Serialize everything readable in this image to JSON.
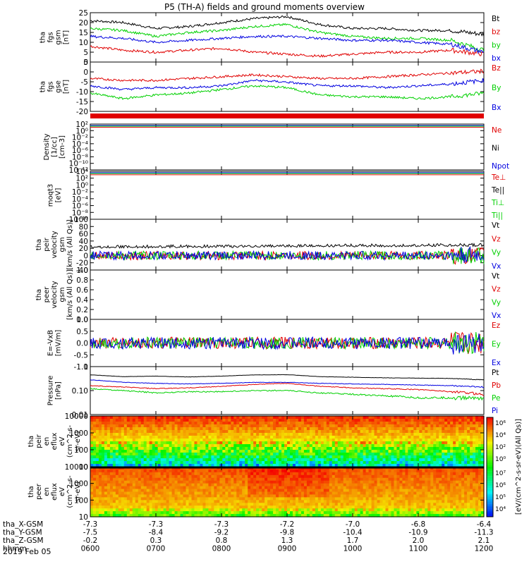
{
  "title": "P5 (TH-A) fields and ground moments overview",
  "date_label": "2019 Feb 05",
  "colors": {
    "black": "#000000",
    "red": "#e00000",
    "green": "#00d000",
    "blue": "#0000e0"
  },
  "chart_data": [
    {
      "type": "line",
      "panel": "fgs_gsm",
      "ylabel": [
        "tha",
        "fgs",
        "gsm",
        "[nT]"
      ],
      "ylim": [
        0,
        25
      ],
      "yticks": [
        "25",
        "20",
        "15",
        "10",
        "5",
        "0"
      ],
      "legend": [
        {
          "name": "Bt",
          "color": "black"
        },
        {
          "name": "bz",
          "color": "red"
        },
        {
          "name": "by",
          "color": "green"
        },
        {
          "name": "bx",
          "color": "blue"
        }
      ],
      "x": [
        0,
        0.5,
        1,
        1.5,
        2,
        2.5,
        3,
        3.5,
        4,
        4.5,
        5,
        5.5,
        6
      ],
      "series": [
        {
          "name": "Bt",
          "color": "black",
          "values": [
            21,
            20,
            17,
            18,
            20,
            22,
            23,
            19,
            17,
            17,
            16,
            16,
            14
          ]
        },
        {
          "name": "bz",
          "color": "red",
          "values": [
            8,
            6,
            5,
            6,
            7,
            5,
            4,
            3,
            4,
            5,
            5,
            6,
            4
          ]
        },
        {
          "name": "by",
          "color": "green",
          "values": [
            17,
            16,
            13,
            15,
            16,
            18,
            19,
            15,
            13,
            12,
            12,
            11,
            6
          ]
        },
        {
          "name": "bx",
          "color": "blue",
          "values": [
            13,
            12,
            10,
            11,
            12,
            13,
            13,
            12,
            11,
            11,
            10,
            9,
            5
          ]
        }
      ]
    },
    {
      "type": "line",
      "panel": "fgs_gse",
      "ylabel": [
        "tha",
        "fgs",
        "gse",
        "[nT]"
      ],
      "ylim": [
        -22,
        5
      ],
      "yticks": [
        "5",
        "0",
        "-5",
        "-10",
        "-15",
        "-20"
      ],
      "legend": [
        {
          "name": "Bz",
          "color": "red"
        },
        {
          "name": "By",
          "color": "green"
        },
        {
          "name": "Bx",
          "color": "blue"
        }
      ],
      "x": [
        0,
        0.5,
        1,
        1.5,
        2,
        2.5,
        3,
        3.5,
        4,
        4.5,
        5,
        5.5,
        6
      ],
      "series": [
        {
          "name": "Bz",
          "color": "red",
          "values": [
            -4,
            -5,
            -5,
            -4,
            -3,
            -2,
            -3,
            -4,
            -4,
            -3,
            -2,
            -1,
            0
          ]
        },
        {
          "name": "By",
          "color": "green",
          "values": [
            -12,
            -15,
            -13,
            -12,
            -10,
            -8,
            -9,
            -13,
            -14,
            -14,
            -15,
            -14,
            -12
          ]
        },
        {
          "name": "Bx",
          "color": "blue",
          "values": [
            -8,
            -10,
            -9,
            -9,
            -8,
            -5,
            -6,
            -8,
            -8,
            -9,
            -8,
            -7,
            -5
          ]
        }
      ]
    },
    {
      "type": "line",
      "panel": "density",
      "ylabel": [
        "Density",
        "[1/cc]",
        "[cm-3]"
      ],
      "ylim": [
        -12,
        2
      ],
      "yticks": [
        "10²",
        "10⁰",
        "10⁻²",
        "10⁻⁴",
        "10⁻⁶",
        "10⁻⁸",
        "10⁻¹⁰",
        "10⁻¹²"
      ],
      "legend": [
        {
          "name": "Ne",
          "color": "red"
        },
        {
          "name": "Ni",
          "color": "black"
        },
        {
          "name": "Npot",
          "color": "blue"
        }
      ],
      "x": [
        0,
        6
      ],
      "series": [
        {
          "name": "Ne",
          "color": "red",
          "values": [
            1,
            1
          ]
        }
      ]
    },
    {
      "type": "line",
      "panel": "temperature",
      "ylabel": [
        "moqt3",
        "[eV]"
      ],
      "ylim": [
        -10,
        4
      ],
      "yticks": [
        "10⁴",
        "10²",
        "10⁰",
        "10⁻²",
        "10⁻⁴",
        "10⁻⁶",
        "10⁻⁸",
        "10⁻¹⁰"
      ],
      "legend": [
        {
          "name": "Te⊥",
          "color": "red"
        },
        {
          "name": "Te||",
          "color": "black"
        },
        {
          "name": "Ti⊥",
          "color": "green"
        },
        {
          "name": "Ti||",
          "color": "green"
        }
      ],
      "x": [
        0,
        6
      ],
      "series": [
        {
          "name": "T",
          "color": "red",
          "values": [
            3,
            3
          ]
        }
      ]
    },
    {
      "type": "line",
      "panel": "peir_velocity",
      "ylabel": [
        "tha",
        "peir",
        "velocity",
        "gsm",
        "[km/s (All Qs)]"
      ],
      "ylim": [
        -40,
        100
      ],
      "yticks": [
        "100",
        "80",
        "60",
        "40",
        "20",
        "0",
        "-20",
        "-40"
      ],
      "legend": [
        {
          "name": "Vt",
          "color": "black"
        },
        {
          "name": "Vz",
          "color": "red"
        },
        {
          "name": "Vy",
          "color": "green"
        },
        {
          "name": "Vx",
          "color": "blue"
        }
      ],
      "x": [
        0,
        6
      ],
      "series": [
        {
          "name": "Vt",
          "color": "black",
          "values": [
            20,
            25
          ]
        },
        {
          "name": "Vz",
          "color": "red",
          "values": [
            0,
            0
          ]
        },
        {
          "name": "Vy",
          "color": "green",
          "values": [
            0,
            0
          ]
        },
        {
          "name": "Vx",
          "color": "blue",
          "values": [
            0,
            0
          ]
        }
      ]
    },
    {
      "type": "line",
      "panel": "peer_velocity",
      "ylabel": [
        "tha",
        "peer",
        "velocity",
        "gsm",
        "[km/s (All Qs)]"
      ],
      "ylim": [
        0,
        1
      ],
      "yticks": [
        "1.0",
        "0.8",
        "0.6",
        "0.4",
        "0.2",
        "0.0"
      ],
      "legend": [
        {
          "name": "Vt",
          "color": "black"
        },
        {
          "name": "Vz",
          "color": "red"
        },
        {
          "name": "Vy",
          "color": "green"
        },
        {
          "name": "Vx",
          "color": "blue"
        }
      ],
      "x": [],
      "series": []
    },
    {
      "type": "line",
      "panel": "efield",
      "ylabel": [
        "E=-VxB",
        "[mV/m]"
      ],
      "ylim": [
        -1,
        1
      ],
      "yticks": [
        "1.0",
        "0.5",
        "0.0",
        "-0.5",
        "-1.0"
      ],
      "legend": [
        {
          "name": "Ez",
          "color": "red"
        },
        {
          "name": "Ey",
          "color": "green"
        },
        {
          "name": "Ex",
          "color": "blue"
        }
      ],
      "x": [
        0,
        6
      ],
      "series": [
        {
          "name": "Ez",
          "color": "red",
          "values": [
            0,
            0
          ]
        },
        {
          "name": "Ey",
          "color": "green",
          "values": [
            0,
            0
          ]
        },
        {
          "name": "Ex",
          "color": "blue",
          "values": [
            0,
            0
          ]
        }
      ]
    },
    {
      "type": "line",
      "panel": "pressure",
      "ylabel": [
        "Pressure",
        "[nPa]"
      ],
      "ylim": [
        0.01,
        1
      ],
      "yticks": [
        "1",
        "0.10",
        "0.01"
      ],
      "legend": [
        {
          "name": "Pt",
          "color": "black"
        },
        {
          "name": "Pb",
          "color": "red"
        },
        {
          "name": "Pe",
          "color": "green"
        },
        {
          "name": "Pi",
          "color": "blue"
        }
      ],
      "x": [
        0,
        0.5,
        1,
        1.5,
        2,
        2.5,
        3,
        3.5,
        4,
        4.5,
        5,
        5.5,
        6
      ],
      "series": [
        {
          "name": "Pt",
          "color": "black",
          "values": [
            0.45,
            0.38,
            0.4,
            0.37,
            0.4,
            0.45,
            0.46,
            0.38,
            0.36,
            0.34,
            0.33,
            0.32,
            0.28
          ]
        },
        {
          "name": "Pb",
          "color": "red",
          "values": [
            0.16,
            0.14,
            0.12,
            0.13,
            0.15,
            0.18,
            0.2,
            0.15,
            0.13,
            0.12,
            0.11,
            0.09,
            0.07
          ]
        },
        {
          "name": "Pe",
          "color": "green",
          "values": [
            0.12,
            0.1,
            0.08,
            0.09,
            0.09,
            0.1,
            0.1,
            0.08,
            0.07,
            0.06,
            0.05,
            0.05,
            0.05
          ]
        },
        {
          "name": "Pi",
          "color": "blue",
          "values": [
            0.28,
            0.22,
            0.2,
            0.19,
            0.2,
            0.22,
            0.22,
            0.2,
            0.19,
            0.18,
            0.17,
            0.16,
            0.14
          ]
        }
      ]
    },
    {
      "type": "heatmap",
      "panel": "peir_spectrogram",
      "ylabel": [
        "tha",
        "peir",
        "en",
        "eflux",
        "eV",
        "(cm^2-s-",
        "sr-eV)"
      ],
      "yticks": [
        "10000",
        "1000",
        "100",
        "10"
      ]
    },
    {
      "type": "heatmap",
      "panel": "peer_spectrogram",
      "ylabel": [
        "tha",
        "peer",
        "en",
        "eflux",
        "eV",
        "(cm^2-s-",
        "sr-eV)"
      ],
      "yticks": [
        "10000",
        "1000",
        "100",
        "10"
      ]
    }
  ],
  "colorbar": {
    "label": "[eV/(cm^2-s-sr-eV)(All Qs)]",
    "top_ticks": [
      "10⁶",
      "10⁴",
      "10²",
      "10⁰"
    ],
    "bottom_ticks": [
      "10⁷",
      "10⁶",
      "10⁵",
      "10⁴"
    ]
  },
  "x_axis": {
    "rows": [
      {
        "label": "tha_X-GSM",
        "values": [
          "-7.3",
          "-7.3",
          "-7.3",
          "-7.2",
          "-7.0",
          "-6.8",
          "-6.4"
        ]
      },
      {
        "label": "tha_Y-GSM",
        "values": [
          "-7.5",
          "-8.4",
          "-9.2",
          "-9.8",
          "-10.4",
          "-10.9",
          "-11.3"
        ]
      },
      {
        "label": "tha_Z-GSM",
        "values": [
          "-0.2",
          "0.3",
          "0.8",
          "1.3",
          "1.7",
          "2.0",
          "2.1"
        ]
      },
      {
        "label": "hhmm",
        "values": [
          "0600",
          "0700",
          "0800",
          "0900",
          "1000",
          "1100",
          "1200"
        ]
      }
    ]
  }
}
